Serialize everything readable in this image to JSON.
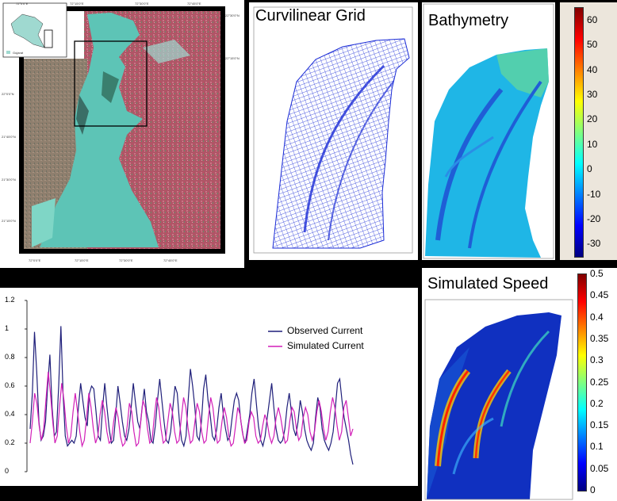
{
  "map": {
    "lat_labels": [
      "22°30'0\"N",
      "22°15'0\"N",
      "22°0'0\"N",
      "21°45'0\"N",
      "21°30'0\"N",
      "21°15'0\"N"
    ],
    "lon_labels_top": [
      "72°0'0\"E",
      "72°15'0\"E",
      "72°30'0\"E",
      "72°45'0\"E"
    ],
    "lon_labels_bottom": [
      "72°0'0\"E",
      "72°15'0\"E",
      "72°30'0\"E",
      "72°45'0\"E"
    ],
    "inset_label": "Gujarat"
  },
  "grid_panel": {
    "title": "Curvilinear Grid"
  },
  "bathy_panel": {
    "title": "Bathymetry",
    "colorbar_ticks": [
      "60",
      "50",
      "40",
      "30",
      "20",
      "10",
      "0",
      "-10",
      "-20",
      "-30"
    ],
    "colorbar_range": [
      -35,
      65
    ]
  },
  "speed_panel": {
    "title": "Simulated Speed",
    "colorbar_ticks": [
      "0.5",
      "0.45",
      "0.4",
      "0.35",
      "0.3",
      "0.25",
      "0.2",
      "0.15",
      "0.1",
      "0.05",
      "0"
    ],
    "colorbar_range": [
      0,
      0.5
    ]
  },
  "chart_data": {
    "type": "line",
    "title": "",
    "xlabel": "",
    "ylabel": "",
    "ylim": [
      0,
      1.2
    ],
    "y_ticks": [
      "0",
      "0.2",
      "0.4",
      "0.6",
      "0.8",
      "1",
      "1.2"
    ],
    "legend_position": "top-right",
    "series": [
      {
        "name": "Observed Current",
        "color": "#1f1f7a",
        "values": [
          0.3,
          0.55,
          0.98,
          0.7,
          0.35,
          0.22,
          0.25,
          0.35,
          0.6,
          0.82,
          0.45,
          0.25,
          0.28,
          0.6,
          1.02,
          0.55,
          0.25,
          0.18,
          0.2,
          0.22,
          0.2,
          0.25,
          0.45,
          0.62,
          0.5,
          0.38,
          0.32,
          0.55,
          0.6,
          0.58,
          0.42,
          0.25,
          0.22,
          0.45,
          0.62,
          0.45,
          0.3,
          0.2,
          0.22,
          0.4,
          0.6,
          0.48,
          0.35,
          0.25,
          0.22,
          0.3,
          0.45,
          0.62,
          0.48,
          0.35,
          0.3,
          0.45,
          0.58,
          0.42,
          0.35,
          0.22,
          0.2,
          0.32,
          0.5,
          0.65,
          0.5,
          0.35,
          0.22,
          0.2,
          0.28,
          0.45,
          0.6,
          0.55,
          0.35,
          0.22,
          0.18,
          0.25,
          0.5,
          0.72,
          0.6,
          0.45,
          0.25,
          0.22,
          0.35,
          0.58,
          0.68,
          0.5,
          0.4,
          0.25,
          0.22,
          0.3,
          0.45,
          0.55,
          0.4,
          0.3,
          0.22,
          0.25,
          0.38,
          0.5,
          0.55,
          0.5,
          0.35,
          0.25,
          0.2,
          0.3,
          0.4,
          0.55,
          0.65,
          0.48,
          0.32,
          0.22,
          0.18,
          0.25,
          0.38,
          0.5,
          0.62,
          0.45,
          0.3,
          0.22,
          0.2,
          0.22,
          0.3,
          0.45,
          0.55,
          0.42,
          0.3,
          0.25,
          0.35,
          0.5,
          0.42,
          0.3,
          0.22,
          0.18,
          0.15,
          0.2,
          0.38,
          0.52,
          0.45,
          0.3,
          0.22,
          0.18,
          0.15,
          0.2,
          0.28,
          0.45,
          0.62,
          0.65,
          0.5,
          0.38,
          0.3,
          0.22,
          0.12,
          0.05
        ]
      },
      {
        "name": "Simulated Current",
        "color": "#d21fb8",
        "values": [
          0.2,
          0.35,
          0.55,
          0.48,
          0.32,
          0.22,
          0.3,
          0.5,
          0.7,
          0.55,
          0.35,
          0.2,
          0.25,
          0.45,
          0.62,
          0.5,
          0.32,
          0.2,
          0.25,
          0.42,
          0.55,
          0.42,
          0.28,
          0.18,
          0.22,
          0.38,
          0.55,
          0.45,
          0.3,
          0.2,
          0.25,
          0.4,
          0.5,
          0.42,
          0.28,
          0.2,
          0.22,
          0.35,
          0.45,
          0.38,
          0.25,
          0.18,
          0.2,
          0.32,
          0.48,
          0.42,
          0.28,
          0.18,
          0.2,
          0.35,
          0.5,
          0.45,
          0.3,
          0.2,
          0.22,
          0.38,
          0.52,
          0.45,
          0.3,
          0.2,
          0.22,
          0.35,
          0.48,
          0.42,
          0.28,
          0.2,
          0.22,
          0.38,
          0.52,
          0.45,
          0.3,
          0.2,
          0.22,
          0.35,
          0.48,
          0.42,
          0.28,
          0.2,
          0.22,
          0.38,
          0.52,
          0.45,
          0.3,
          0.2,
          0.22,
          0.35,
          0.45,
          0.38,
          0.25,
          0.18,
          0.2,
          0.32,
          0.45,
          0.4,
          0.28,
          0.2,
          0.22,
          0.35,
          0.42,
          0.38,
          0.25,
          0.2,
          0.22,
          0.32,
          0.4,
          0.35,
          0.25,
          0.2,
          0.25,
          0.38,
          0.45,
          0.38,
          0.28,
          0.2,
          0.22,
          0.35,
          0.45,
          0.42,
          0.3,
          0.22,
          0.25,
          0.38,
          0.45,
          0.4,
          0.28,
          0.22,
          0.28,
          0.42,
          0.5,
          0.42,
          0.3,
          0.22,
          0.28,
          0.42,
          0.52,
          0.45,
          0.32,
          0.22,
          0.28,
          0.45,
          0.5,
          0.38,
          0.25,
          0.3
        ]
      }
    ]
  }
}
